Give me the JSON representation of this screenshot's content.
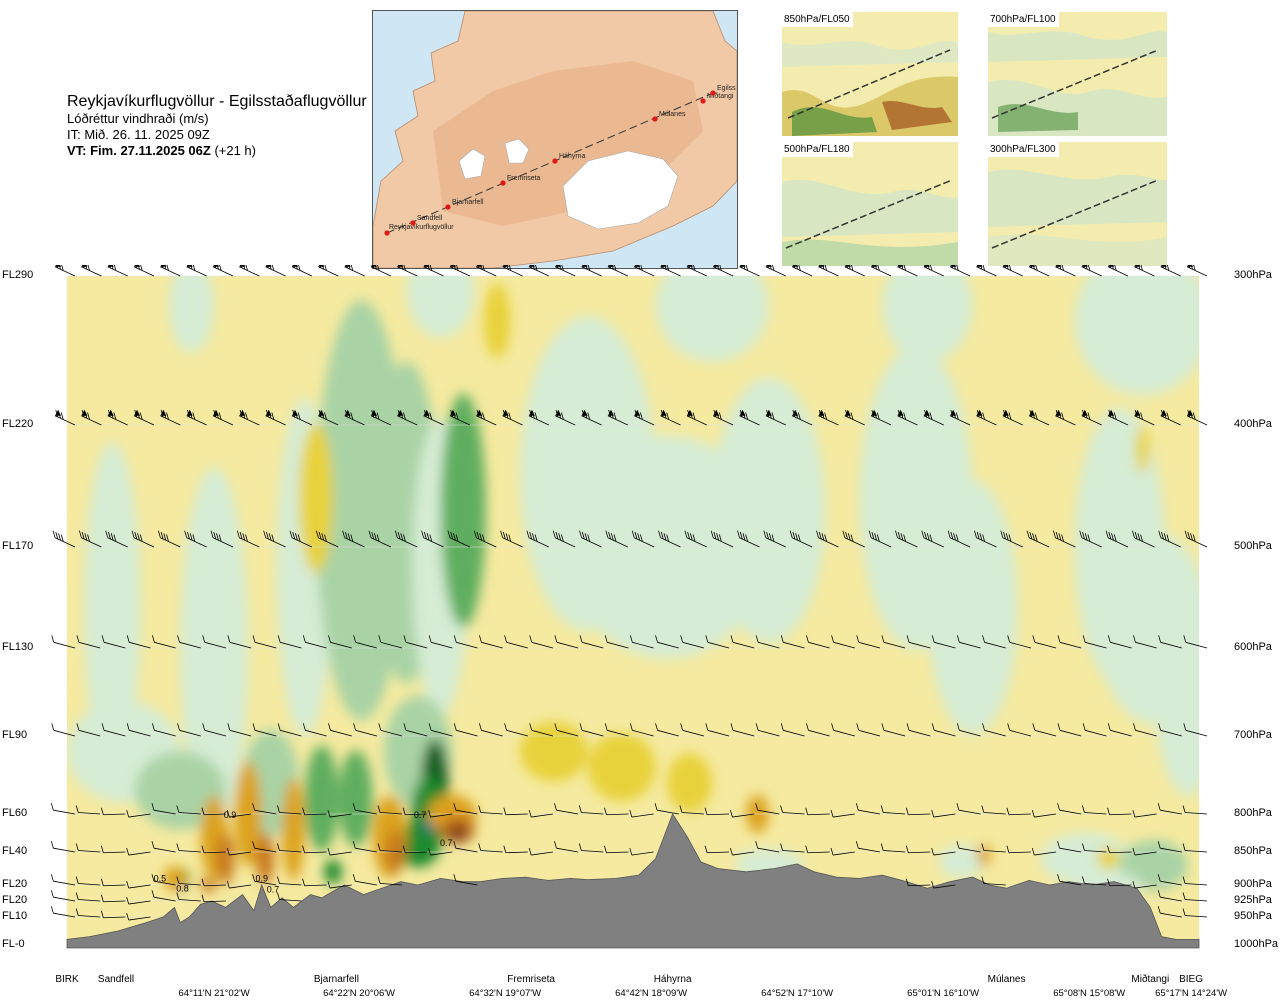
{
  "header": {
    "route": "Reykjavíkurflugvöllur - Egilsstaðaflugvöllur",
    "variable": "Lóðréttur vindhraði (m/s)",
    "issue_time": "IT: Mið. 26. 11. 2025 09Z",
    "valid_time_bold": "VT: Fim. 27.11.2025 06Z",
    "valid_time_offset": "(+21 h)"
  },
  "route_map": {
    "points": [
      "Reykjavíkurflugvöllur",
      "Sandfell",
      "Bjarnarfell",
      "Fremriseta",
      "Háhyrna",
      "Múlanes",
      "Miðtangi",
      "Egilsstaðaflugvöllur"
    ],
    "point_labels": [
      "Reykjavíkurflugvöllur",
      "Sandfell",
      "Bjarnarfell",
      "Fremriseta",
      "Háhyrna",
      "Múlanes",
      "Miðtangi",
      "Egilss"
    ]
  },
  "minimaps": [
    {
      "label": "850hPa/FL050"
    },
    {
      "label": "700hPa/FL100"
    },
    {
      "label": "500hPa/FL180"
    },
    {
      "label": "300hPa/FL300"
    }
  ],
  "colors": {
    "up_light": "#f5eaa0",
    "up_medium": "#e8d23a",
    "up_strong": "#dca21c",
    "up_stronger": "#c8781c",
    "up_strongest": "#8c4a1e",
    "down_light": "#d6ecd4",
    "down_medium": "#a9d3a5",
    "down_strong": "#5fae5f",
    "down_stronger": "#1f8a2f",
    "down_strongest": "#0e5e1e",
    "extreme": "#2f5fb0",
    "terrain": "#808080"
  },
  "chart_data": {
    "type": "heatmap",
    "title": "Lóðréttur vindhraði (m/s)",
    "flight_levels": [
      "FL290",
      "FL220",
      "FL170",
      "FL130",
      "FL90",
      "FL60",
      "FL40",
      "FL20",
      "FL20",
      "FL10",
      "FL-0"
    ],
    "pressure_levels_hpa": [
      "300hPa",
      "400hPa",
      "500hPa",
      "600hPa",
      "700hPa",
      "800hPa",
      "850hPa",
      "900hPa",
      "925hPa",
      "950hPa",
      "1000hPa"
    ],
    "pressure_values": [
      300,
      400,
      500,
      600,
      700,
      800,
      850,
      900,
      925,
      950,
      1000
    ],
    "pressure_range": [
      1000,
      300
    ],
    "route_points": [
      {
        "name": "BIRK",
        "dist": 0
      },
      {
        "name": "Sandfell",
        "dist": 0.037
      },
      {
        "name": "Bjarnarfell",
        "dist": 0.238
      },
      {
        "name": "Fremriseta",
        "dist": 0.41
      },
      {
        "name": "Háhyrna",
        "dist": 0.535
      },
      {
        "name": "Múlanes",
        "dist": 0.83
      },
      {
        "name": "Miðtangi",
        "dist": 0.957
      },
      {
        "name": "BIEG",
        "dist": 0.993
      }
    ],
    "coordinate_labels": [
      {
        "text": "64°11'N 21°02'W",
        "dist": 0.13
      },
      {
        "text": "64°22'N 20°06'W",
        "dist": 0.258
      },
      {
        "text": "64°32'N 19°07'W",
        "dist": 0.387
      },
      {
        "text": "64°42'N 18°09'W",
        "dist": 0.516
      },
      {
        "text": "64°52'N 17°10'W",
        "dist": 0.645
      },
      {
        "text": "65°01'N 16°10'W",
        "dist": 0.774
      },
      {
        "text": "65°08'N 15°08'W",
        "dist": 0.903
      },
      {
        "text": "65°17'N 14°24'W",
        "dist": 0.993
      }
    ],
    "contour_labels": [
      {
        "text": "0.5",
        "dist": 0.082,
        "p": 895
      },
      {
        "text": "0.8",
        "dist": 0.102,
        "p": 910
      },
      {
        "text": "0.9",
        "dist": 0.144,
        "p": 805
      },
      {
        "text": "0.9",
        "dist": 0.172,
        "p": 895
      },
      {
        "text": "0.7",
        "dist": 0.182,
        "p": 912
      },
      {
        "text": "0.7",
        "dist": 0.312,
        "p": 805
      },
      {
        "text": "0.7",
        "dist": 0.335,
        "p": 842
      }
    ],
    "terrain_pressure": [
      [
        0.0,
        990
      ],
      [
        0.02,
        985
      ],
      [
        0.045,
        975
      ],
      [
        0.07,
        960
      ],
      [
        0.085,
        950
      ],
      [
        0.095,
        935
      ],
      [
        0.1,
        960
      ],
      [
        0.108,
        950
      ],
      [
        0.118,
        930
      ],
      [
        0.128,
        925
      ],
      [
        0.14,
        935
      ],
      [
        0.155,
        915
      ],
      [
        0.165,
        940
      ],
      [
        0.172,
        900
      ],
      [
        0.18,
        935
      ],
      [
        0.19,
        920
      ],
      [
        0.2,
        935
      ],
      [
        0.215,
        915
      ],
      [
        0.225,
        920
      ],
      [
        0.245,
        900
      ],
      [
        0.262,
        915
      ],
      [
        0.278,
        905
      ],
      [
        0.295,
        895
      ],
      [
        0.31,
        900
      ],
      [
        0.33,
        890
      ],
      [
        0.35,
        895
      ],
      [
        0.365,
        895
      ],
      [
        0.385,
        890
      ],
      [
        0.405,
        888
      ],
      [
        0.425,
        893
      ],
      [
        0.445,
        890
      ],
      [
        0.46,
        892
      ],
      [
        0.485,
        890
      ],
      [
        0.505,
        885
      ],
      [
        0.52,
        860
      ],
      [
        0.535,
        800
      ],
      [
        0.548,
        830
      ],
      [
        0.56,
        865
      ],
      [
        0.575,
        875
      ],
      [
        0.6,
        880
      ],
      [
        0.625,
        875
      ],
      [
        0.645,
        868
      ],
      [
        0.66,
        880
      ],
      [
        0.68,
        888
      ],
      [
        0.7,
        890
      ],
      [
        0.72,
        885
      ],
      [
        0.742,
        895
      ],
      [
        0.76,
        905
      ],
      [
        0.78,
        895
      ],
      [
        0.8,
        888
      ],
      [
        0.815,
        900
      ],
      [
        0.83,
        905
      ],
      [
        0.85,
        893
      ],
      [
        0.868,
        900
      ],
      [
        0.885,
        895
      ],
      [
        0.905,
        900
      ],
      [
        0.925,
        895
      ],
      [
        0.945,
        905
      ],
      [
        0.957,
        935
      ],
      [
        0.967,
        985
      ],
      [
        0.98,
        990
      ],
      [
        1.0,
        990
      ]
    ],
    "wind_barb_levels": [
      300,
      400,
      500,
      600,
      700,
      800,
      850,
      900,
      925,
      950
    ],
    "legend": "none",
    "grid": false
  }
}
